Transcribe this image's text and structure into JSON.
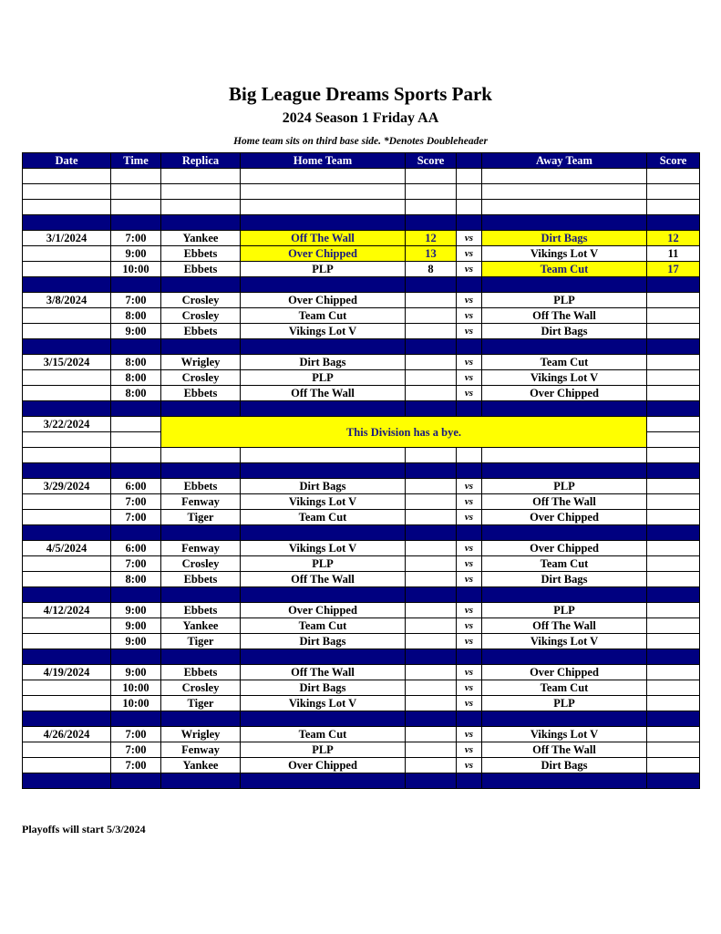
{
  "title": "Big League Dreams Sports Park",
  "subtitle": "2024 Season 1 Friday AA",
  "note": "Home team sits on third base side.  *Denotes Doubleheader",
  "headers": [
    "Date",
    "Time",
    "Replica",
    "Home Team",
    "Score",
    "",
    "Away Team",
    "Score"
  ],
  "vs_label": "vs",
  "colors": {
    "band": "#000080",
    "highlight": "#ffff00"
  },
  "weeks": [
    {
      "date": "3/1/2024",
      "games": [
        {
          "time": "7:00",
          "replica": "Yankee",
          "home": "Off The Wall",
          "home_score": "12",
          "away": "Dirt Bags",
          "away_score": "12",
          "home_hl": true,
          "away_hl": true
        },
        {
          "time": "9:00",
          "replica": "Ebbets",
          "home": "Over Chipped",
          "home_score": "13",
          "away": "Vikings Lot V",
          "away_score": "11",
          "home_hl": true,
          "away_hl": false
        },
        {
          "time": "10:00",
          "replica": "Ebbets",
          "home": "PLP",
          "home_score": "8",
          "away": "Team Cut",
          "away_score": "17",
          "home_hl": false,
          "away_hl": true
        }
      ]
    },
    {
      "date": "3/8/2024",
      "games": [
        {
          "time": "7:00",
          "replica": "Crosley",
          "home": "Over Chipped",
          "away": "PLP"
        },
        {
          "time": "8:00",
          "replica": "Crosley",
          "home": "Team Cut",
          "away": "Off The Wall"
        },
        {
          "time": "9:00",
          "replica": "Ebbets",
          "home": "Vikings Lot V",
          "away": "Dirt Bags"
        }
      ]
    },
    {
      "date": "3/15/2024",
      "games": [
        {
          "time": "8:00",
          "replica": "Wrigley",
          "home": "Dirt Bags",
          "away": "Team Cut"
        },
        {
          "time": "8:00",
          "replica": "Crosley",
          "home": "PLP",
          "away": "Vikings Lot V"
        },
        {
          "time": "8:00",
          "replica": "Ebbets",
          "home": "Off The Wall",
          "away": "Over Chipped"
        }
      ]
    },
    {
      "date": "3/22/2024",
      "bye": "This Division has a bye."
    },
    {
      "date": "3/29/2024",
      "games": [
        {
          "time": "6:00",
          "replica": "Ebbets",
          "home": "Dirt Bags",
          "away": "PLP"
        },
        {
          "time": "7:00",
          "replica": "Fenway",
          "home": "Vikings Lot V",
          "away": "Off The Wall"
        },
        {
          "time": "7:00",
          "replica": "Tiger",
          "home": "Team Cut",
          "away": "Over Chipped"
        }
      ]
    },
    {
      "date": "4/5/2024",
      "games": [
        {
          "time": "6:00",
          "replica": "Fenway",
          "home": "Vikings Lot V",
          "away": "Over Chipped"
        },
        {
          "time": "7:00",
          "replica": "Crosley",
          "home": "PLP",
          "away": "Team Cut"
        },
        {
          "time": "8:00",
          "replica": "Ebbets",
          "home": "Off The Wall",
          "away": "Dirt Bags"
        }
      ]
    },
    {
      "date": "4/12/2024",
      "games": [
        {
          "time": "9:00",
          "replica": "Ebbets",
          "home": "Over Chipped",
          "away": "PLP"
        },
        {
          "time": "9:00",
          "replica": "Yankee",
          "home": "Team Cut",
          "away": "Off The Wall"
        },
        {
          "time": "9:00",
          "replica": "Tiger",
          "home": "Dirt Bags",
          "away": "Vikings Lot V"
        }
      ]
    },
    {
      "date": "4/19/2024",
      "games": [
        {
          "time": "9:00",
          "replica": "Ebbets",
          "home": "Off The Wall",
          "away": "Over Chipped"
        },
        {
          "time": "10:00",
          "replica": "Crosley",
          "home": "Dirt Bags",
          "away": "Team Cut"
        },
        {
          "time": "10:00",
          "replica": "Tiger",
          "home": "Vikings Lot V",
          "away": "PLP"
        }
      ]
    },
    {
      "date": "4/26/2024",
      "games": [
        {
          "time": "7:00",
          "replica": "Wrigley",
          "home": "Team Cut",
          "away": "Vikings Lot V"
        },
        {
          "time": "7:00",
          "replica": "Fenway",
          "home": "PLP",
          "away": "Off The Wall"
        },
        {
          "time": "7:00",
          "replica": "Yankee",
          "home": "Over Chipped",
          "away": "Dirt Bags"
        }
      ]
    }
  ],
  "footer": "Playoffs will start 5/3/2024"
}
